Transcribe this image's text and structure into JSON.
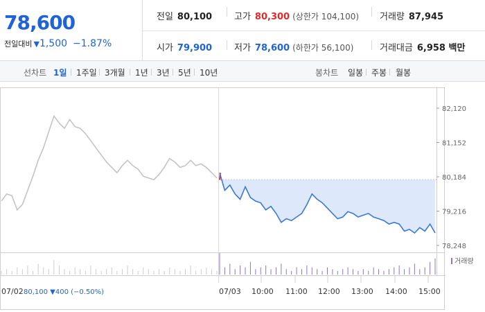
{
  "quote": {
    "current_price": "78,600",
    "change_label": "전일대비",
    "change_icon": "down-triangle-icon",
    "change_amount": "1,500",
    "change_percent": "−1.87%",
    "prev_close_label": "전일",
    "prev_close_value": "80,100",
    "high_label": "고가",
    "high_value": "80,300",
    "upper_limit_text": "(상한가 104,100)",
    "volume_label": "거래량",
    "volume_value": "87,945",
    "open_label": "시가",
    "open_value": "79,900",
    "low_label": "저가",
    "low_value": "78,600",
    "lower_limit_text": "(하한가 56,100)",
    "trade_value_label": "거래대금",
    "trade_value_value": "6,958 백만",
    "colors": {
      "up": "#e02a2a",
      "down": "#1f63d6"
    }
  },
  "period_bar": {
    "line_label": "선차트",
    "line_options": [
      {
        "label": "1일",
        "active": true
      },
      {
        "label": "1주일",
        "active": false
      },
      {
        "label": "3개월",
        "active": false
      },
      {
        "label": "1년",
        "active": false
      },
      {
        "label": "3년",
        "active": false
      },
      {
        "label": "5년",
        "active": false
      },
      {
        "label": "10년",
        "active": false
      }
    ],
    "candle_label": "봉차트",
    "candle_options": [
      {
        "label": "일봉"
      },
      {
        "label": "주봉"
      },
      {
        "label": "월봉"
      }
    ]
  },
  "chart_data": {
    "type": "line",
    "y_ticks": [
      "82,120",
      "81,152",
      "80,184",
      "79,216",
      "78,248"
    ],
    "ylim": [
      78248,
      82120
    ],
    "reference_line": 80100,
    "prev_day_label": "07/02",
    "prev_day_info": "80,100 ▼400 (−0.50%)",
    "x_tick_labels": [
      "07/03",
      "10:00",
      "11:00",
      "12:00",
      "13:00",
      "14:00",
      "15:00"
    ],
    "volume_legend": "거래량",
    "prev_day_series": [
      [
        0,
        79500
      ],
      [
        1,
        79700
      ],
      [
        2,
        79650
      ],
      [
        3,
        79250
      ],
      [
        4,
        79400
      ],
      [
        5,
        79800
      ],
      [
        6,
        80200
      ],
      [
        7,
        80650
      ],
      [
        8,
        81000
      ],
      [
        9,
        81450
      ],
      [
        10,
        81900
      ],
      [
        11,
        81700
      ],
      [
        12,
        81550
      ],
      [
        13,
        81800
      ],
      [
        14,
        81600
      ],
      [
        15,
        81550
      ],
      [
        16,
        81400
      ],
      [
        17,
        81200
      ],
      [
        18,
        81000
      ],
      [
        19,
        80800
      ],
      [
        20,
        80600
      ],
      [
        21,
        80450
      ],
      [
        22,
        80300
      ],
      [
        23,
        80500
      ],
      [
        24,
        80650
      ],
      [
        25,
        80500
      ],
      [
        26,
        80400
      ],
      [
        27,
        80200
      ],
      [
        28,
        80150
      ],
      [
        29,
        80100
      ],
      [
        30,
        80250
      ],
      [
        31,
        80450
      ],
      [
        32,
        80700
      ],
      [
        33,
        80600
      ],
      [
        34,
        80450
      ],
      [
        35,
        80500
      ],
      [
        36,
        80650
      ],
      [
        37,
        80500
      ],
      [
        38,
        80550
      ],
      [
        39,
        80450
      ],
      [
        40,
        80300
      ],
      [
        41,
        80150
      ]
    ],
    "today_series": [
      [
        0,
        80300
      ],
      [
        1,
        79800
      ],
      [
        2,
        79950
      ],
      [
        3,
        79700
      ],
      [
        4,
        79550
      ],
      [
        5,
        79900
      ],
      [
        6,
        79600
      ],
      [
        7,
        79500
      ],
      [
        8,
        79450
      ],
      [
        9,
        79250
      ],
      [
        10,
        79350
      ],
      [
        11,
        79150
      ],
      [
        12,
        78900
      ],
      [
        13,
        79000
      ],
      [
        14,
        78950
      ],
      [
        15,
        79050
      ],
      [
        16,
        79150
      ],
      [
        17,
        79400
      ],
      [
        18,
        79700
      ],
      [
        19,
        79550
      ],
      [
        20,
        79450
      ],
      [
        21,
        79300
      ],
      [
        22,
        79150
      ],
      [
        23,
        79000
      ],
      [
        24,
        79050
      ],
      [
        25,
        79200
      ],
      [
        26,
        79150
      ],
      [
        27,
        79050
      ],
      [
        28,
        79100
      ],
      [
        29,
        79150
      ],
      [
        30,
        79050
      ],
      [
        31,
        79000
      ],
      [
        32,
        78950
      ],
      [
        33,
        78850
      ],
      [
        34,
        78900
      ],
      [
        35,
        78850
      ],
      [
        36,
        78650
      ],
      [
        37,
        78700
      ],
      [
        38,
        78600
      ],
      [
        39,
        78750
      ],
      [
        40,
        78650
      ],
      [
        41,
        78850
      ],
      [
        42,
        78600
      ]
    ],
    "volume_prev": [
      2,
      3,
      2,
      4,
      3,
      5,
      2,
      6,
      4,
      3,
      8,
      5,
      3,
      2,
      4,
      3,
      2,
      5,
      3,
      2,
      3,
      4,
      2,
      3,
      5,
      3,
      2,
      4,
      3,
      2,
      3,
      2,
      4,
      3,
      2,
      3,
      5,
      2,
      3,
      4,
      3,
      2
    ],
    "volume_today": [
      12,
      4,
      6,
      3,
      5,
      4,
      7,
      3,
      4,
      5,
      3,
      4,
      6,
      3,
      2,
      4,
      3,
      5,
      4,
      3,
      2,
      4,
      3,
      2,
      3,
      4,
      3,
      2,
      3,
      2,
      4,
      3,
      2,
      3,
      4,
      5,
      3,
      4,
      6,
      3,
      4,
      7,
      9
    ]
  }
}
